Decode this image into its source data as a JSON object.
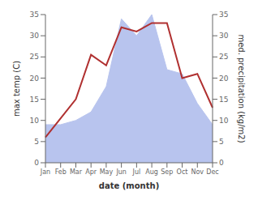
{
  "chart_data": {
    "type": "line",
    "categories": [
      "Jan",
      "Feb",
      "Mar",
      "Apr",
      "May",
      "Jun",
      "Jul",
      "Aug",
      "Sep",
      "Oct",
      "Nov",
      "Dec"
    ],
    "xlabel": "date (month)",
    "ylabel": "max temp (C)",
    "y2label": "med. precipitation (kg/m2)",
    "ylim": [
      0,
      35
    ],
    "yticks": [
      0,
      5,
      10,
      15,
      20,
      25,
      30,
      35
    ],
    "y2lim": [
      0,
      35
    ],
    "y2ticks": [
      0,
      5,
      10,
      15,
      20,
      25,
      30,
      35
    ],
    "grid": false,
    "series": [
      {
        "type": "area",
        "color": "#b8c4ee",
        "axis": "y2",
        "values": [
          9,
          9,
          10,
          12,
          18,
          34,
          30,
          35,
          22,
          21,
          14,
          9
        ]
      },
      {
        "type": "line",
        "color": "#b03030",
        "values": [
          6,
          10.5,
          15,
          25.5,
          23,
          32,
          31,
          33,
          33,
          20,
          21,
          13
        ]
      }
    ]
  }
}
